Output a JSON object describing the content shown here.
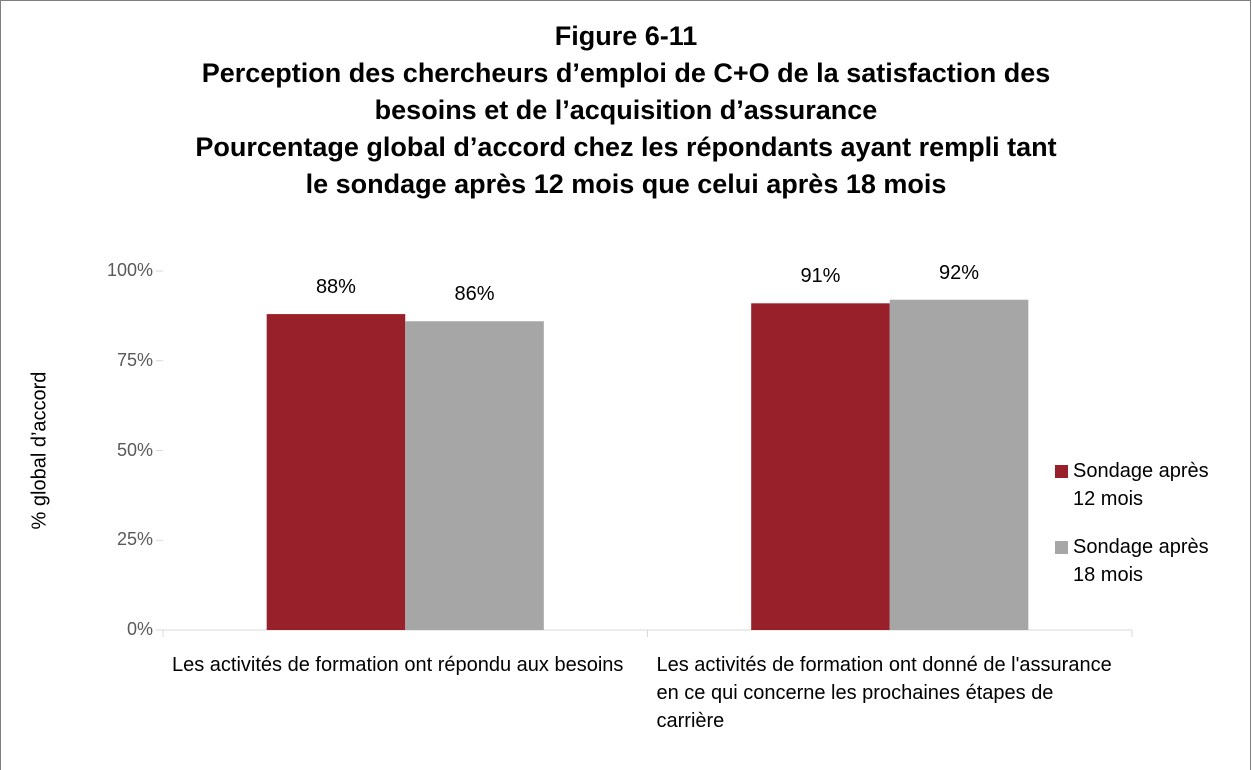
{
  "chart_data": {
    "type": "bar",
    "title": [
      "Figure 6-11",
      "Perception des chercheurs d’emploi de C+O de la satisfaction des",
      "besoins et de l’acquisition d’assurance",
      "Pourcentage global d’accord chez les répondants ayant rempli tant",
      "le sondage après 12 mois que celui après 18 mois"
    ],
    "y_label": "% global d’accord",
    "categories": [
      "Les activités de formation ont répondu aux besoins",
      "Les activités de formation ont donné de l'assurance en ce qui concerne les prochaines étapes de carrière"
    ],
    "series": [
      {
        "name": "Sondage après 12 mois",
        "color": "#98202a",
        "values": [
          88,
          91
        ],
        "value_labels": [
          "88%",
          "91%"
        ]
      },
      {
        "name": "Sondage après 18 mois",
        "color": "#a6a6a6",
        "values": [
          86,
          92
        ],
        "value_labels": [
          "86%",
          "92%"
        ]
      }
    ],
    "ylim": [
      0,
      100
    ],
    "yticks": [
      {
        "value": 0,
        "label": "0%"
      },
      {
        "value": 25,
        "label": "25%"
      },
      {
        "value": 50,
        "label": "50%"
      },
      {
        "value": 75,
        "label": "75%"
      },
      {
        "value": 100,
        "label": "100%"
      }
    ],
    "grid": false,
    "legend": "right"
  }
}
